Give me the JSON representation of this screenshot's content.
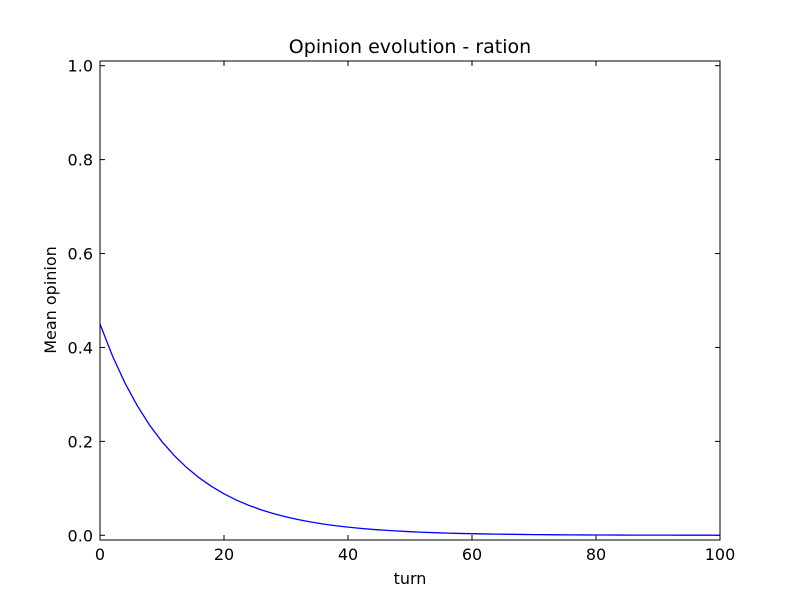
{
  "chart_data": {
    "type": "line",
    "title": "Opinion evolution - ration",
    "xlabel": "turn",
    "ylabel": "Mean opinion",
    "xlim": [
      0,
      100
    ],
    "ylim": [
      -0.01,
      1.01
    ],
    "xticks": [
      0,
      20,
      40,
      60,
      80,
      100
    ],
    "xtick_labels": [
      "0",
      "20",
      "40",
      "60",
      "80",
      "100"
    ],
    "yticks": [
      0.0,
      0.2,
      0.4,
      0.6,
      0.8,
      1.0
    ],
    "ytick_labels": [
      "0.0",
      "0.2",
      "0.4",
      "0.6",
      "0.8",
      "1.0"
    ],
    "grid": false,
    "series": [
      {
        "color": "#0000ff",
        "x": [
          0,
          2,
          4,
          6,
          8,
          10,
          12,
          14,
          16,
          18,
          20,
          22,
          24,
          26,
          28,
          30,
          32,
          34,
          36,
          38,
          40,
          42,
          44,
          46,
          48,
          50,
          52,
          54,
          56,
          58,
          60,
          62,
          64,
          66,
          68,
          70,
          72,
          74,
          76,
          78,
          80,
          82,
          84,
          86,
          88,
          90,
          92,
          94,
          96,
          98,
          100
        ],
        "y": [
          0.45,
          0.3824,
          0.325,
          0.2762,
          0.2347,
          0.1994,
          0.1695,
          0.144,
          0.1224,
          0.104,
          0.0884,
          0.0751,
          0.0638,
          0.0542,
          0.0461,
          0.0392,
          0.0333,
          0.0283,
          0.024,
          0.0204,
          0.0174,
          0.0148,
          0.0125,
          0.0107,
          0.0091,
          0.0077,
          0.0065,
          0.0056,
          0.0047,
          0.004,
          0.0034,
          0.0029,
          0.0025,
          0.0021,
          0.0018,
          0.0015,
          0.0013,
          0.0011,
          0.0009,
          0.0008,
          0.0007,
          0.0006,
          0.0005,
          0.0004,
          0.0004,
          0.0003,
          0.0003,
          0.0002,
          0.0002,
          0.0002,
          0.0001
        ]
      }
    ]
  }
}
